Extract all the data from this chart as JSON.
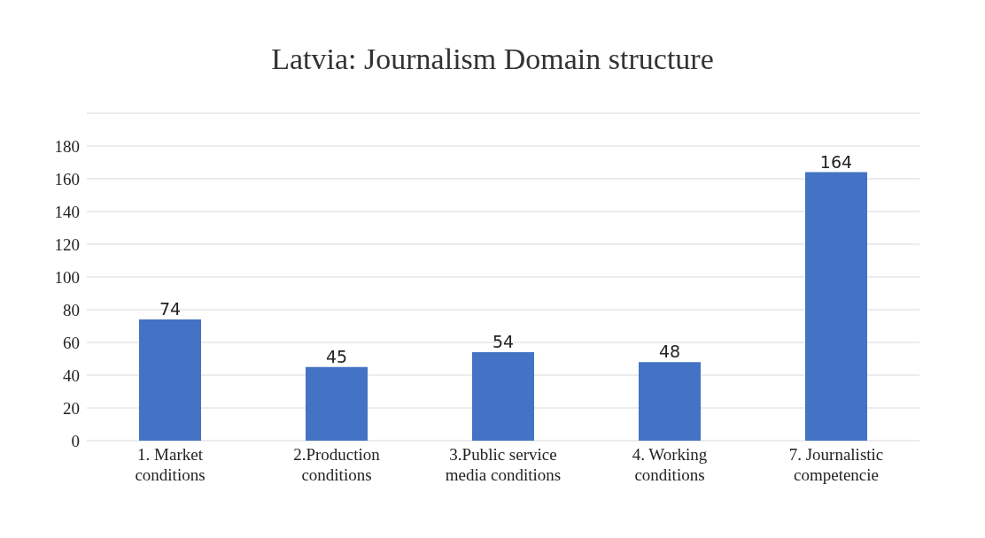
{
  "chart_data": {
    "type": "bar",
    "title": "Latvia: Journalism Domain structure",
    "categories": [
      "1. Market conditions",
      "2.Production conditions",
      "3.Public service media conditions",
      "4. Working conditions",
      "7. Journalistic competencie"
    ],
    "values": [
      74,
      45,
      54,
      48,
      164
    ],
    "color": "#4472c4",
    "ylim": [
      0,
      200
    ],
    "yticks": [
      0,
      20,
      40,
      60,
      80,
      100,
      120,
      140,
      160,
      180,
      {
        "value": 200,
        "label": null
      }
    ],
    "grid": "y",
    "data_labels": true
  }
}
